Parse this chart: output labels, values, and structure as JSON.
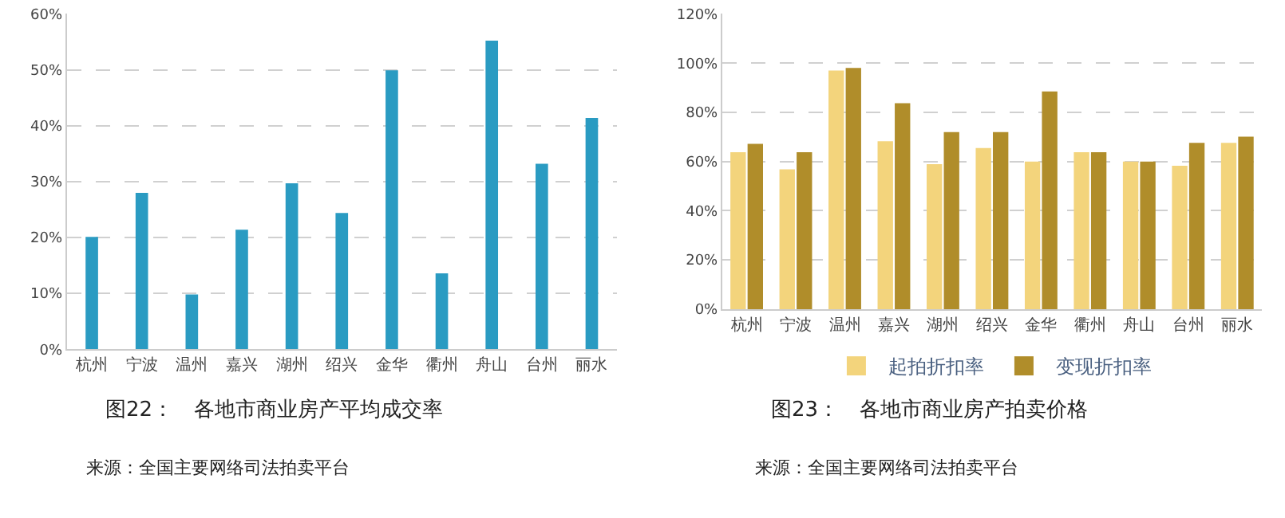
{
  "chart_data": [
    {
      "type": "bar",
      "title": "图22：　各地市商业房产平均成交率",
      "annotations": [
        "来源：全国主要网络司法拍卖平台"
      ],
      "categories": [
        "杭州",
        "宁波",
        "温州",
        "嘉兴",
        "湖州",
        "绍兴",
        "金华",
        "衢州",
        "舟山",
        "台州",
        "丽水"
      ],
      "series": [
        {
          "color": "#2a9bc2",
          "values": [
            20.1,
            28.0,
            9.8,
            21.4,
            29.7,
            24.4,
            49.9,
            13.6,
            55.2,
            33.2,
            41.4
          ]
        }
      ],
      "ylim": [
        0,
        60
      ],
      "yticks": [
        {
          "value": 0,
          "label": "0%"
        },
        {
          "value": 10,
          "label": "10%"
        },
        {
          "value": 20,
          "label": "20%"
        },
        {
          "value": 30,
          "label": "30%"
        },
        {
          "value": 40,
          "label": "40%"
        },
        {
          "value": 50,
          "label": "50%"
        },
        {
          "value": 60,
          "label": "60%"
        }
      ],
      "grid": "y",
      "legend": false
    },
    {
      "type": "bar",
      "title": "图23：　各地市商业房产拍卖价格",
      "annotations": [
        "来源：全国主要网络司法拍卖平台"
      ],
      "categories": [
        "杭州",
        "宁波",
        "温州",
        "嘉兴",
        "湖州",
        "绍兴",
        "金华",
        "衢州",
        "舟山",
        "台州",
        "丽水"
      ],
      "series": [
        {
          "name": "起拍折扣率",
          "color": "#f3d47c",
          "values": [
            63.8,
            56.8,
            97.0,
            68.2,
            58.9,
            65.5,
            60.0,
            63.8,
            60.0,
            58.3,
            67.6
          ]
        },
        {
          "name": "变现折扣率",
          "color": "#b08d2a",
          "values": [
            67.2,
            63.8,
            98.0,
            83.7,
            72.0,
            72.0,
            88.5,
            63.8,
            60.0,
            67.6,
            70.1
          ]
        }
      ],
      "ylim": [
        0,
        120
      ],
      "yticks": [
        {
          "value": 0,
          "label": "0%"
        },
        {
          "value": 20,
          "label": "20%"
        },
        {
          "value": 40,
          "label": "40%"
        },
        {
          "value": 60,
          "label": "60%"
        },
        {
          "value": 80,
          "label": "80%"
        },
        {
          "value": 100,
          "label": "100%"
        },
        {
          "value": 120,
          "label": "120%"
        }
      ],
      "grid": "y",
      "legend": "bottom"
    }
  ]
}
